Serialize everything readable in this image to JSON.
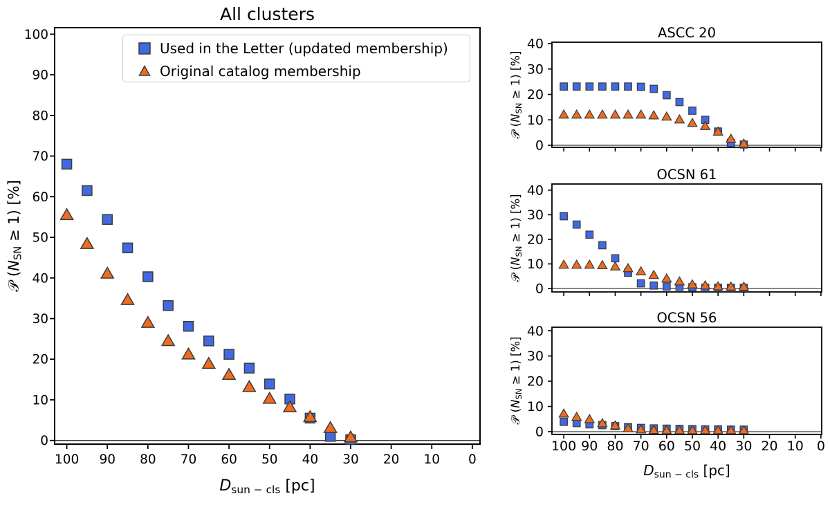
{
  "figure": {
    "colors": {
      "series_blue": "#4169e1",
      "series_orange": "#ef6c1f",
      "marker_edge": "#3b3b3b",
      "axis": "#000000",
      "zero_line": "#3d3d3d",
      "legend_border": "#cccccc",
      "text": "#000000",
      "background": "#ffffff"
    },
    "legend": {
      "items": [
        {
          "marker": "square",
          "label": "Used in the Letter (updated membership)"
        },
        {
          "marker": "triangle",
          "label": "Original catalog membership"
        }
      ]
    },
    "labels": {
      "xlabel": {
        "variable": "D",
        "subscript": "sun − cls",
        "unit": " [pc]"
      },
      "ylabel": {
        "script_p": "𝒫",
        "prefix": " (",
        "variable": "N",
        "subscript": "SN",
        "suffix": " ≥ 1) [%]"
      }
    }
  },
  "chart_data": [
    {
      "id": "all-clusters",
      "type": "scatter",
      "title": "All clusters",
      "xlabel": "D_sun-cls [pc]",
      "ylabel": "P(N_SN >= 1) [%]",
      "x_axis_reversed": true,
      "zero_line": true,
      "grid": false,
      "xlim": [
        100,
        0
      ],
      "ylim": [
        0,
        100
      ],
      "xticks": [
        100,
        90,
        80,
        70,
        60,
        50,
        40,
        30,
        20,
        10,
        0
      ],
      "yticks": [
        0,
        10,
        20,
        30,
        40,
        50,
        60,
        70,
        80,
        90,
        100
      ],
      "x": [
        100,
        95,
        90,
        85,
        80,
        75,
        70,
        65,
        60,
        55,
        50,
        45,
        40,
        35,
        30
      ],
      "series": [
        {
          "name": "Used in the Letter (updated membership)",
          "marker": "square",
          "color_key": "series_blue",
          "values": [
            68.0,
            61.5,
            54.4,
            47.4,
            40.3,
            33.2,
            28.1,
            24.5,
            21.2,
            17.8,
            13.9,
            10.2,
            5.5,
            1.0,
            0.2
          ]
        },
        {
          "name": "Original catalog membership",
          "marker": "triangle",
          "color_key": "series_orange",
          "values": [
            55.3,
            48.2,
            40.9,
            34.4,
            28.8,
            24.3,
            21.0,
            18.7,
            16.0,
            13.0,
            10.1,
            8.0,
            5.6,
            2.9,
            0.6
          ]
        }
      ]
    },
    {
      "id": "ascc-20",
      "type": "scatter",
      "title": "ASCC 20",
      "ylabel": "P(N_SN >= 1) [%]",
      "x_axis_reversed": true,
      "zero_line": true,
      "grid": false,
      "xlim": [
        100,
        0
      ],
      "ylim": [
        0,
        40
      ],
      "xticks": [
        100,
        90,
        80,
        70,
        60,
        50,
        40,
        30,
        20,
        10,
        0
      ],
      "yticks": [
        0,
        10,
        20,
        30,
        40
      ],
      "x": [
        100,
        95,
        90,
        85,
        80,
        75,
        70,
        65,
        60,
        55,
        50,
        45,
        40,
        35,
        30
      ],
      "series": [
        {
          "name": "Used in the Letter (updated membership)",
          "marker": "square",
          "color_key": "series_blue",
          "values": [
            23.1,
            23.1,
            23.1,
            23.1,
            23.1,
            23.1,
            23.0,
            22.2,
            19.7,
            17.0,
            13.6,
            10.0,
            5.4,
            0.9,
            0.3
          ]
        },
        {
          "name": "Original catalog membership",
          "marker": "triangle",
          "color_key": "series_orange",
          "values": [
            11.8,
            11.8,
            11.8,
            11.8,
            11.8,
            11.8,
            11.8,
            11.5,
            11.0,
            9.9,
            8.5,
            7.3,
            5.1,
            2.3,
            0.4
          ]
        }
      ]
    },
    {
      "id": "ocsn-61",
      "type": "scatter",
      "title": "OCSN 61",
      "ylabel": "P(N_SN >= 1) [%]",
      "x_axis_reversed": true,
      "zero_line": true,
      "grid": false,
      "xlim": [
        100,
        0
      ],
      "ylim": [
        0,
        40
      ],
      "xticks": [
        100,
        90,
        80,
        70,
        60,
        50,
        40,
        30,
        20,
        10,
        0
      ],
      "yticks": [
        0,
        10,
        20,
        30,
        40
      ],
      "x": [
        100,
        95,
        90,
        85,
        80,
        75,
        70,
        65,
        60,
        55,
        50,
        45,
        40,
        35,
        30
      ],
      "series": [
        {
          "name": "Used in the Letter (updated membership)",
          "marker": "square",
          "color_key": "series_blue",
          "values": [
            29.4,
            26.0,
            21.9,
            17.6,
            12.3,
            6.4,
            2.1,
            1.2,
            0.8,
            0.7,
            0.5,
            0.3,
            0.3,
            0.3,
            0.3
          ]
        },
        {
          "name": "Original catalog membership",
          "marker": "triangle",
          "color_key": "series_orange",
          "values": [
            9.4,
            9.4,
            9.4,
            9.2,
            8.7,
            8.0,
            6.7,
            5.2,
            3.8,
            2.6,
            1.4,
            1.0,
            0.6,
            0.5,
            0.5
          ]
        }
      ]
    },
    {
      "id": "ocsn-56",
      "type": "scatter",
      "title": "OCSN 56",
      "xlabel": "D_sun-cls [pc]",
      "ylabel": "P(N_SN >= 1) [%]",
      "x_axis_reversed": true,
      "zero_line": true,
      "grid": false,
      "xlim": [
        100,
        0
      ],
      "ylim": [
        0,
        40
      ],
      "xticks": [
        100,
        90,
        80,
        70,
        60,
        50,
        40,
        30,
        20,
        10,
        0
      ],
      "yticks": [
        0,
        10,
        20,
        30,
        40
      ],
      "x": [
        100,
        95,
        90,
        85,
        80,
        75,
        70,
        65,
        60,
        55,
        50,
        45,
        40,
        35,
        30
      ],
      "series": [
        {
          "name": "Used in the Letter (updated membership)",
          "marker": "square",
          "color_key": "series_blue",
          "values": [
            3.9,
            3.4,
            2.9,
            2.6,
            2.2,
            1.8,
            1.5,
            1.3,
            1.2,
            1.1,
            1.0,
            0.9,
            0.9,
            0.8,
            0.8
          ]
        },
        {
          "name": "Original catalog membership",
          "marker": "triangle",
          "color_key": "series_orange",
          "values": [
            6.9,
            5.6,
            4.7,
            3.1,
            2.2,
            1.1,
            0.6,
            0.4,
            0.3,
            0.3,
            0.3,
            0.3,
            0.3,
            0.3,
            0.3
          ]
        }
      ]
    }
  ]
}
